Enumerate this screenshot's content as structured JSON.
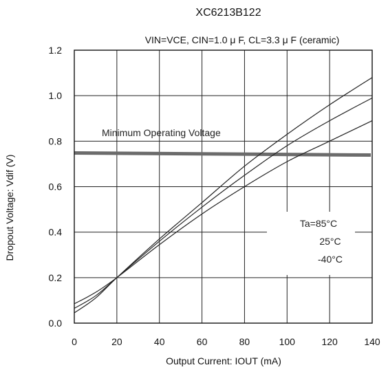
{
  "chart_data": {
    "type": "line",
    "title": "XC6213B122",
    "subtitle": "VIN=VCE, CIN=1.0 μ F, CL=3.3 μ F (ceramic)",
    "xlabel": "Output Current: IOUT (mA)",
    "ylabel": "Dropout Voltage: Vdif (V)",
    "xlim": [
      0,
      140
    ],
    "ylim": [
      0,
      1.2
    ],
    "xticks": [
      "0",
      "20",
      "40",
      "60",
      "80",
      "100",
      "120",
      "140"
    ],
    "yticks": [
      "0.0",
      "0.2",
      "0.4",
      "0.6",
      "0.8",
      "1.0",
      "1.2"
    ],
    "grid": true,
    "series": [
      {
        "name": "85°C",
        "x": [
          0,
          10,
          20,
          40,
          60,
          80,
          100,
          120,
          140
        ],
        "y": [
          0.045,
          0.11,
          0.2,
          0.37,
          0.53,
          0.69,
          0.83,
          0.96,
          1.08
        ]
      },
      {
        "name": "25°C",
        "x": [
          0,
          10,
          20,
          40,
          60,
          80,
          100,
          120,
          140
        ],
        "y": [
          0.065,
          0.12,
          0.2,
          0.36,
          0.51,
          0.65,
          0.78,
          0.89,
          0.99
        ]
      },
      {
        "name": "-40°C",
        "x": [
          0,
          10,
          20,
          40,
          60,
          80,
          100,
          120,
          140
        ],
        "y": [
          0.085,
          0.135,
          0.2,
          0.345,
          0.48,
          0.6,
          0.71,
          0.8,
          0.89
        ]
      }
    ],
    "reference_line": {
      "label": "Minimum Operating Voltage",
      "y": 0.745
    },
    "legend_block": {
      "lines": [
        "Ta=85°C",
        "25°C",
        "-40°C"
      ],
      "placement": "right"
    }
  }
}
